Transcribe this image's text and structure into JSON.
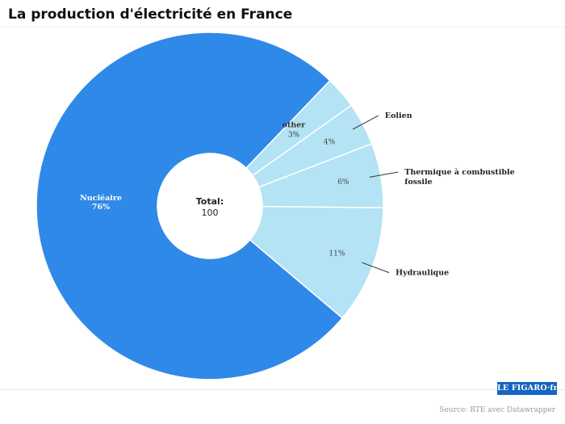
{
  "title": "La production d'électricité en France",
  "source": "Source: RTE avec Datawrapper",
  "logo": "LE FIGARO·fr",
  "chart_data": {
    "type": "pie",
    "donut": true,
    "title": "La production d'électricité en France",
    "center": {
      "label": "Total:",
      "value": "100"
    },
    "slices": [
      {
        "name": "Nucléaire",
        "value": 76,
        "label": "76%",
        "color": "#2f89e8",
        "label_inside": true
      },
      {
        "name": "other",
        "value": 3,
        "label": "3%",
        "color": "#b3e3f5",
        "label_inside": true
      },
      {
        "name": "Eolien",
        "value": 4,
        "label": "4%",
        "color": "#b3e3f5",
        "label_inside": false
      },
      {
        "name": "Thermique à combustible fossile",
        "value": 6,
        "label": "6%",
        "color": "#b3e3f5",
        "label_inside": false
      },
      {
        "name": "Hydraulique",
        "value": 11,
        "label": "11%",
        "color": "#b3e3f5",
        "label_inside": false
      }
    ]
  }
}
